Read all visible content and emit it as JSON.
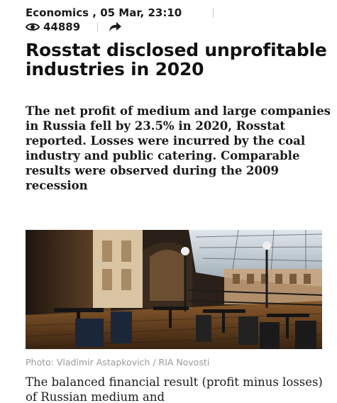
{
  "article": {
    "category": "Economics",
    "datetime": "05 Mar, 23:10",
    "views": "44889",
    "views_icon": "eye-icon",
    "share_icon": "share-arrow-icon",
    "title": "Rosstat disclosed unprofitable industries in 2020",
    "lead": "The net profit of medium and large companies in Russia fell by 23.5% in 2020, Rosstat reported. Losses were incurred by the coal industry and public catering. Comparable results were observed during the 2009 recession",
    "photo_caption": "Photo: Vladimir Astapkovich / RIA Novosti",
    "body_start": "The balanced financial result (profit minus losses) of Russian medium and"
  },
  "colors": {
    "text": "#111111",
    "caption": "#9a9a9a",
    "divider": "#c8c8c8"
  }
}
